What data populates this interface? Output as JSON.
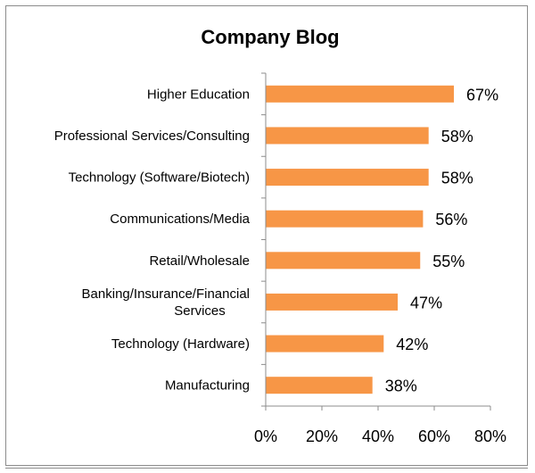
{
  "chart_data": {
    "type": "bar",
    "orientation": "horizontal",
    "title": "Company Blog",
    "categories": [
      "Higher Education",
      "Professional Services/Consulting",
      "Technology (Software/Biotech)",
      "Communications/Media",
      "Retail/Wholesale",
      "Banking/Insurance/Financial Services",
      "Technology (Hardware)",
      "Manufacturing"
    ],
    "category_lines": [
      [
        "Higher Education"
      ],
      [
        "Professional Services/Consulting"
      ],
      [
        "Technology (Software/Biotech)"
      ],
      [
        "Communications/Media"
      ],
      [
        "Retail/Wholesale"
      ],
      [
        "Banking/Insurance/Financial",
        "Services"
      ],
      [
        "Technology (Hardware)"
      ],
      [
        "Manufacturing"
      ]
    ],
    "values": [
      67,
      58,
      58,
      56,
      55,
      47,
      42,
      38
    ],
    "data_labels": [
      "67%",
      "58%",
      "58%",
      "56%",
      "55%",
      "47%",
      "42%",
      "38%"
    ],
    "xlim": [
      0,
      80
    ],
    "x_ticks": [
      0,
      20,
      40,
      60,
      80
    ],
    "x_tick_labels": [
      "0%",
      "20%",
      "40%",
      "60%",
      "80%"
    ],
    "grid": false,
    "legend": "none",
    "bar_color": "#F79646"
  }
}
